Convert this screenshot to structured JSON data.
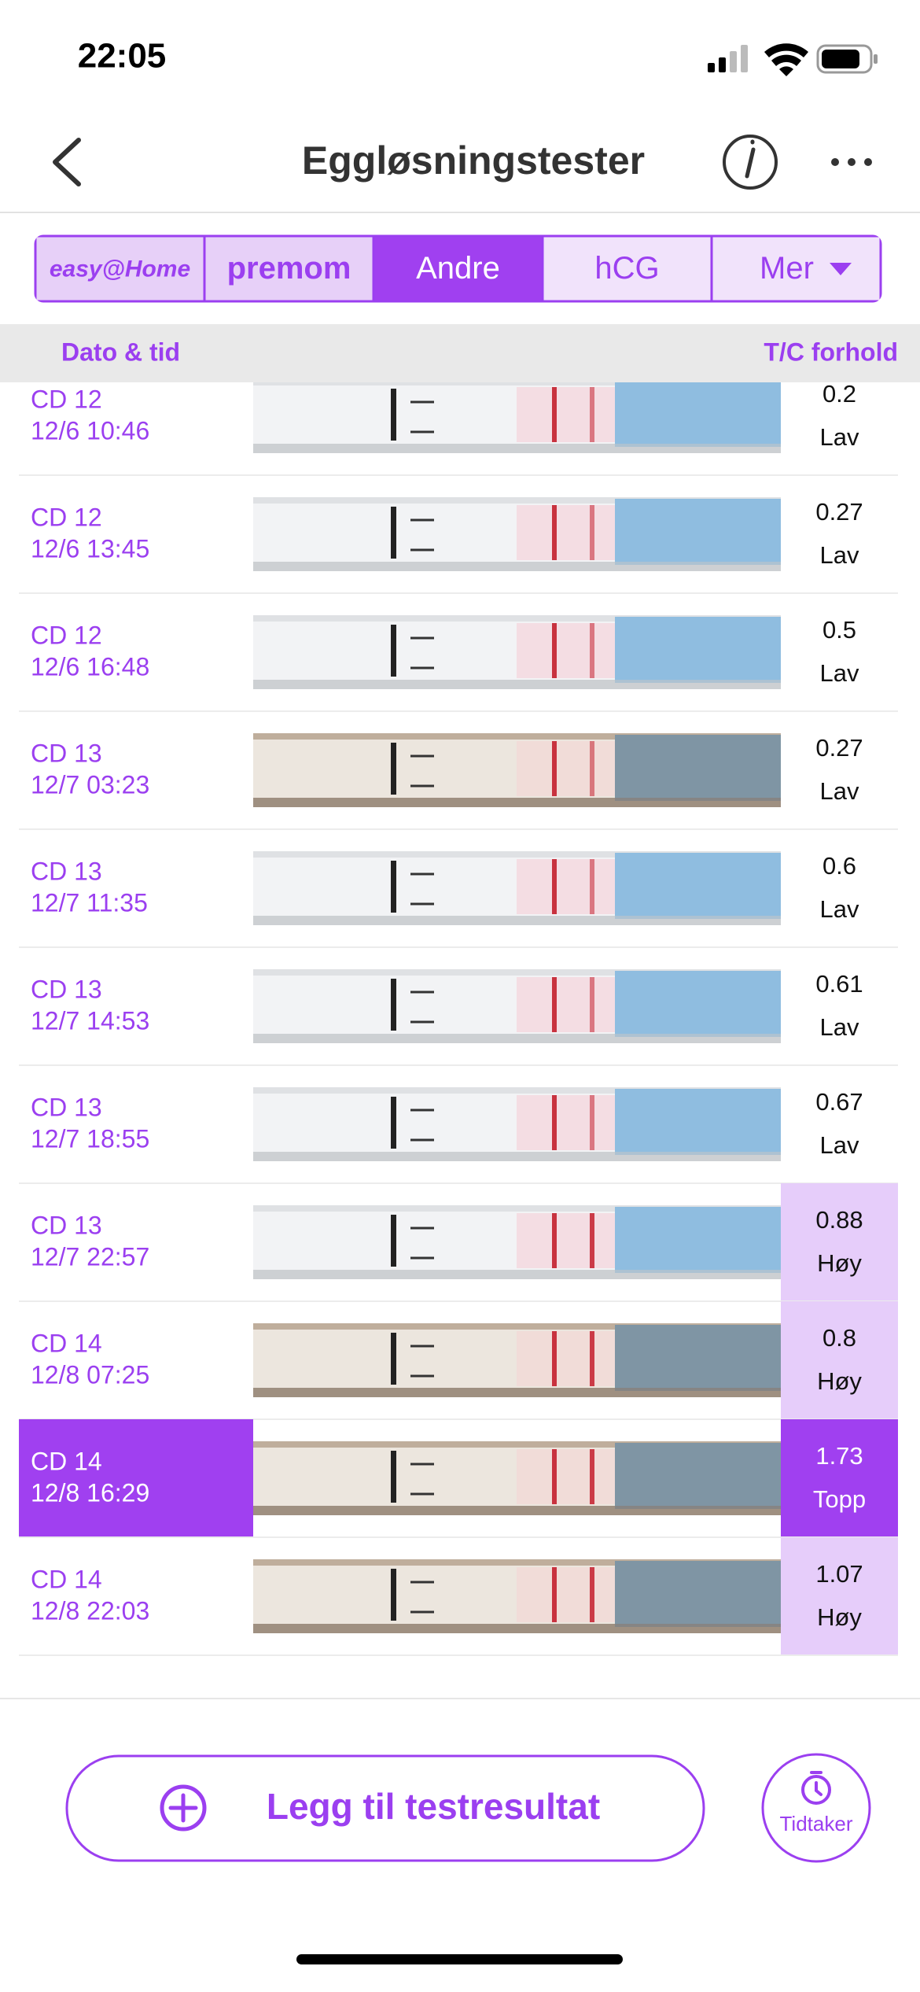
{
  "status_bar": {
    "time": "22:05"
  },
  "header": {
    "title": "Eggløsningstester"
  },
  "tabs": [
    {
      "label": "easy@Home"
    },
    {
      "label": "premom"
    },
    {
      "label": "Andre",
      "selected": true
    },
    {
      "label": "hCG"
    },
    {
      "label": "Mer"
    }
  ],
  "columns": {
    "date": "Dato & tid",
    "ratio": "T/C forhold"
  },
  "rows": [
    {
      "cycle_day": "CD 12",
      "datetime": "12/6 10:46",
      "ratio": 0.2,
      "level": "Lav"
    },
    {
      "cycle_day": "CD 12",
      "datetime": "12/6 13:45",
      "ratio": 0.27,
      "level": "Lav"
    },
    {
      "cycle_day": "CD 12",
      "datetime": "12/6 16:48",
      "ratio": 0.5,
      "level": "Lav"
    },
    {
      "cycle_day": "CD 13",
      "datetime": "12/7 03:23",
      "ratio": 0.27,
      "level": "Lav"
    },
    {
      "cycle_day": "CD 13",
      "datetime": "12/7 11:35",
      "ratio": 0.6,
      "level": "Lav"
    },
    {
      "cycle_day": "CD 13",
      "datetime": "12/7 14:53",
      "ratio": 0.61,
      "level": "Lav"
    },
    {
      "cycle_day": "CD 13",
      "datetime": "12/7 18:55",
      "ratio": 0.67,
      "level": "Lav"
    },
    {
      "cycle_day": "CD 13",
      "datetime": "12/7 22:57",
      "ratio": 0.88,
      "level": "Høy",
      "highlight": "light"
    },
    {
      "cycle_day": "CD 14",
      "datetime": "12/8 07:25",
      "ratio": 0.8,
      "level": "Høy",
      "highlight": "light"
    },
    {
      "cycle_day": "CD 14",
      "datetime": "12/8 16:29",
      "ratio": 1.73,
      "level": "Topp",
      "highlight": "strong",
      "selected": true
    },
    {
      "cycle_day": "CD 14",
      "datetime": "12/8 22:03",
      "ratio": 1.07,
      "level": "Høy",
      "highlight": "light"
    }
  ],
  "buttons": {
    "add": "Legg til testresultat",
    "timer": "Tidtaker"
  }
}
